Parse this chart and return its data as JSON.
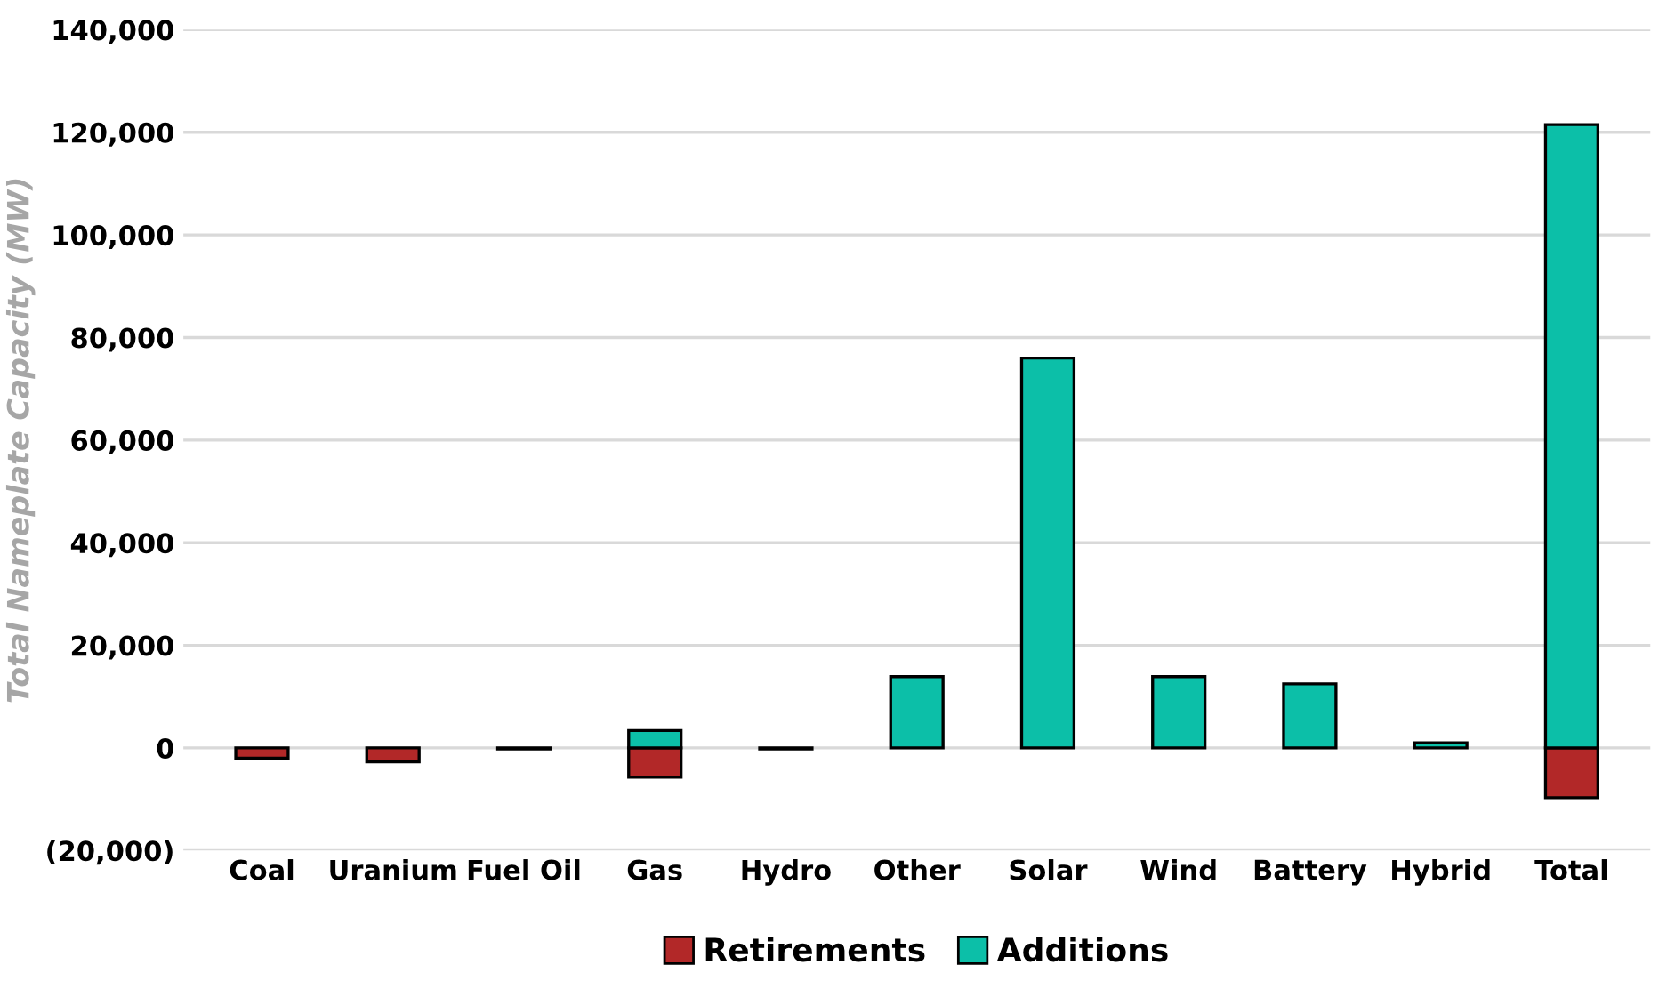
{
  "chart_data": {
    "type": "bar",
    "stacked": true,
    "ylabel": "Total Nameplate Capacity (MW)",
    "categories": [
      "Coal",
      "Uranium",
      "Fuel Oil",
      "Gas",
      "Hydro",
      "Other",
      "Solar",
      "Wind",
      "Battery",
      "Hybrid",
      "Total"
    ],
    "series": [
      {
        "name": "Retirements",
        "color": "#b22828",
        "values": [
          -2000,
          -2700,
          -200,
          -5700,
          -200,
          null,
          null,
          null,
          null,
          null,
          -9700
        ]
      },
      {
        "name": "Additions",
        "color": "#0cbfa8",
        "values": [
          null,
          null,
          null,
          3400,
          null,
          13900,
          76000,
          13900,
          12500,
          1000,
          121500
        ]
      }
    ],
    "ylim": [
      -20000,
      140000
    ],
    "yticks": [
      {
        "value": -20000,
        "label": "(20,000)"
      },
      0,
      {
        "value": 20000,
        "label": "20,000"
      },
      {
        "value": 40000,
        "label": "40,000"
      },
      {
        "value": 60000,
        "label": "60,000"
      },
      {
        "value": 80000,
        "label": "80,000"
      },
      {
        "value": 100000,
        "label": "100,000"
      },
      {
        "value": 120000,
        "label": "120,000"
      },
      {
        "value": 140000,
        "label": "140,000"
      }
    ],
    "grid": "y",
    "legend": "bottom"
  }
}
